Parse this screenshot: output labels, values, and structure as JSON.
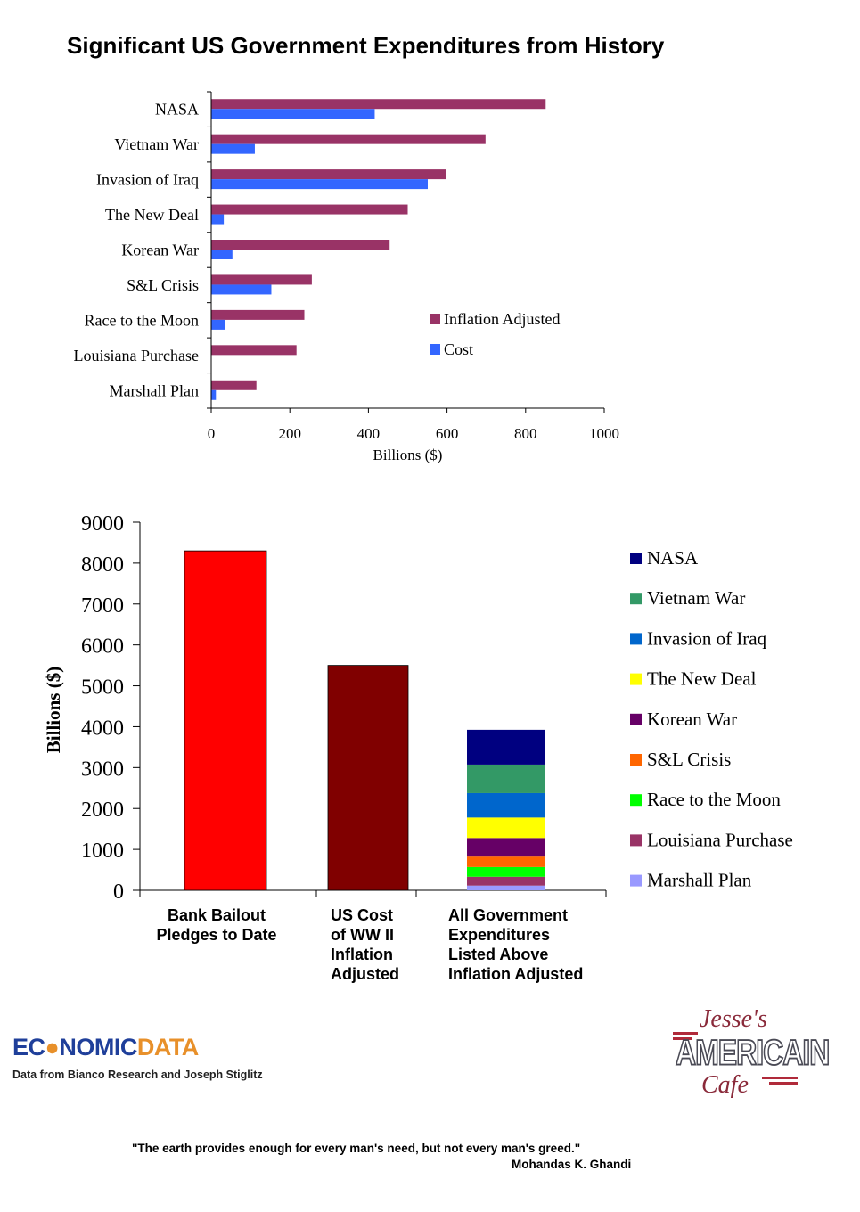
{
  "title": "Significant US Government Expenditures from History",
  "chart_data": [
    {
      "type": "bar",
      "orientation": "horizontal",
      "categories": [
        "NASA",
        "Vietnam War",
        "Invasion of Iraq",
        "The New Deal",
        "Korean War",
        "S&L Crisis",
        "Race to the Moon",
        "Louisiana Purchase",
        "Marshall Plan"
      ],
      "series": [
        {
          "name": "Inflation Adjusted",
          "color": "#993366",
          "values": [
            851,
            698,
            597,
            500,
            454,
            256,
            237,
            217,
            115
          ]
        },
        {
          "name": "Cost",
          "color": "#3366ff",
          "values": [
            416,
            111,
            551,
            32,
            54,
            153,
            36,
            0,
            12
          ]
        }
      ],
      "xlabel": "Billions ($)",
      "ylabel": "",
      "xlim": [
        0,
        1000
      ],
      "xticks": [
        0,
        200,
        400,
        600,
        800,
        1000
      ],
      "grid": false,
      "legend_position": "right"
    },
    {
      "type": "bar",
      "orientation": "vertical",
      "stacked": true,
      "categories": [
        "Bank Bailout Pledges to Date",
        "US Cost of WW II Inflation Adjusted",
        "All Government Expenditures Listed Above Inflation Adjusted"
      ],
      "category_lines": [
        [
          "Bank Bailout",
          "Pledges to Date"
        ],
        [
          "US Cost",
          "of WW II",
          "Inflation",
          "Adjusted"
        ],
        [
          "All Government",
          "Expenditures",
          "Listed Above",
          "Inflation Adjusted"
        ]
      ],
      "single_bars": [
        {
          "value": 8300,
          "color": "#ff0000"
        },
        {
          "value": 5500,
          "color": "#800000"
        }
      ],
      "stack_series": [
        {
          "name": "Marshall Plan",
          "color": "#9999ff",
          "value": 115
        },
        {
          "name": "Louisiana Purchase",
          "color": "#993366",
          "value": 217
        },
        {
          "name": "Race to the Moon",
          "color": "#00ff00",
          "value": 237
        },
        {
          "name": "S&L Crisis",
          "color": "#ff6600",
          "value": 256
        },
        {
          "name": "Korean War",
          "color": "#660066",
          "value": 454
        },
        {
          "name": "The New Deal",
          "color": "#ffff00",
          "value": 500
        },
        {
          "name": "Invasion of Iraq",
          "color": "#0066cc",
          "value": 597
        },
        {
          "name": "Vietnam War",
          "color": "#339966",
          "value": 698
        },
        {
          "name": "NASA",
          "color": "#000080",
          "value": 851
        }
      ],
      "legend_order": [
        "NASA",
        "Vietnam War",
        "Invasion of Iraq",
        "The New Deal",
        "Korean War",
        "S&L Crisis",
        "Race to the Moon",
        "Louisiana Purchase",
        "Marshall Plan"
      ],
      "xlabel": "",
      "ylabel": "Billions ($)",
      "ylim": [
        0,
        9000
      ],
      "yticks": [
        0,
        1000,
        2000,
        3000,
        4000,
        5000,
        6000,
        7000,
        8000,
        9000
      ],
      "grid": false,
      "legend_position": "right"
    }
  ],
  "logo": {
    "part1": "EC",
    "part2": "NOMIC",
    "part3": "DATA"
  },
  "source": "Data from Bianco Research and Joseph Stiglitz",
  "cafe": {
    "top": "Jesse's",
    "mid": "AMERICAIN",
    "bot": "Cafe"
  },
  "quote": "\"The earth provides enough for every man's need, but not every man's greed.\"",
  "quote_author": "Mohandas K. Ghandi"
}
